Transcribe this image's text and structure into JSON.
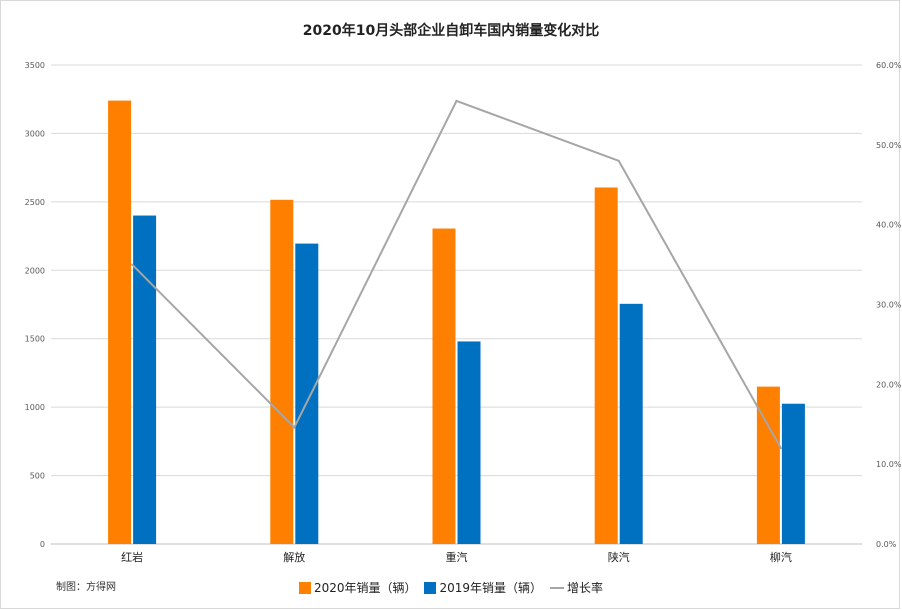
{
  "chart_data": {
    "type": "bar",
    "title": "2020年10月头部企业自卸车国内销量变化对比",
    "categories": [
      "红岩",
      "解放",
      "重汽",
      "陕汽",
      "柳汽"
    ],
    "series": [
      {
        "name": "2020年销量（辆）",
        "type": "bar",
        "axis": "left",
        "color": "#ff7f00",
        "values": [
          3240,
          2515,
          2305,
          2605,
          1150
        ]
      },
      {
        "name": "2019年销量（辆）",
        "type": "bar",
        "axis": "left",
        "color": "#0070c0",
        "values": [
          2400,
          2195,
          1480,
          1755,
          1025
        ]
      },
      {
        "name": "增长率",
        "type": "line",
        "axis": "right",
        "color": "#a6a6a6",
        "values": [
          0.35,
          0.146,
          0.555,
          0.48,
          0.12
        ]
      }
    ],
    "ylim": [
      0,
      3500
    ],
    "y_ticks": [
      "0",
      "500",
      "1000",
      "1500",
      "2000",
      "2500",
      "3000",
      "3500"
    ],
    "y2lim": [
      0,
      0.6
    ],
    "y2_ticks": [
      "0.0%",
      "10.0%",
      "20.0%",
      "30.0%",
      "40.0%",
      "50.0%",
      "60.0%"
    ],
    "xlabel": "",
    "ylabel": "",
    "grid": true,
    "legend": "bottom"
  },
  "credit": "制图：方得网"
}
